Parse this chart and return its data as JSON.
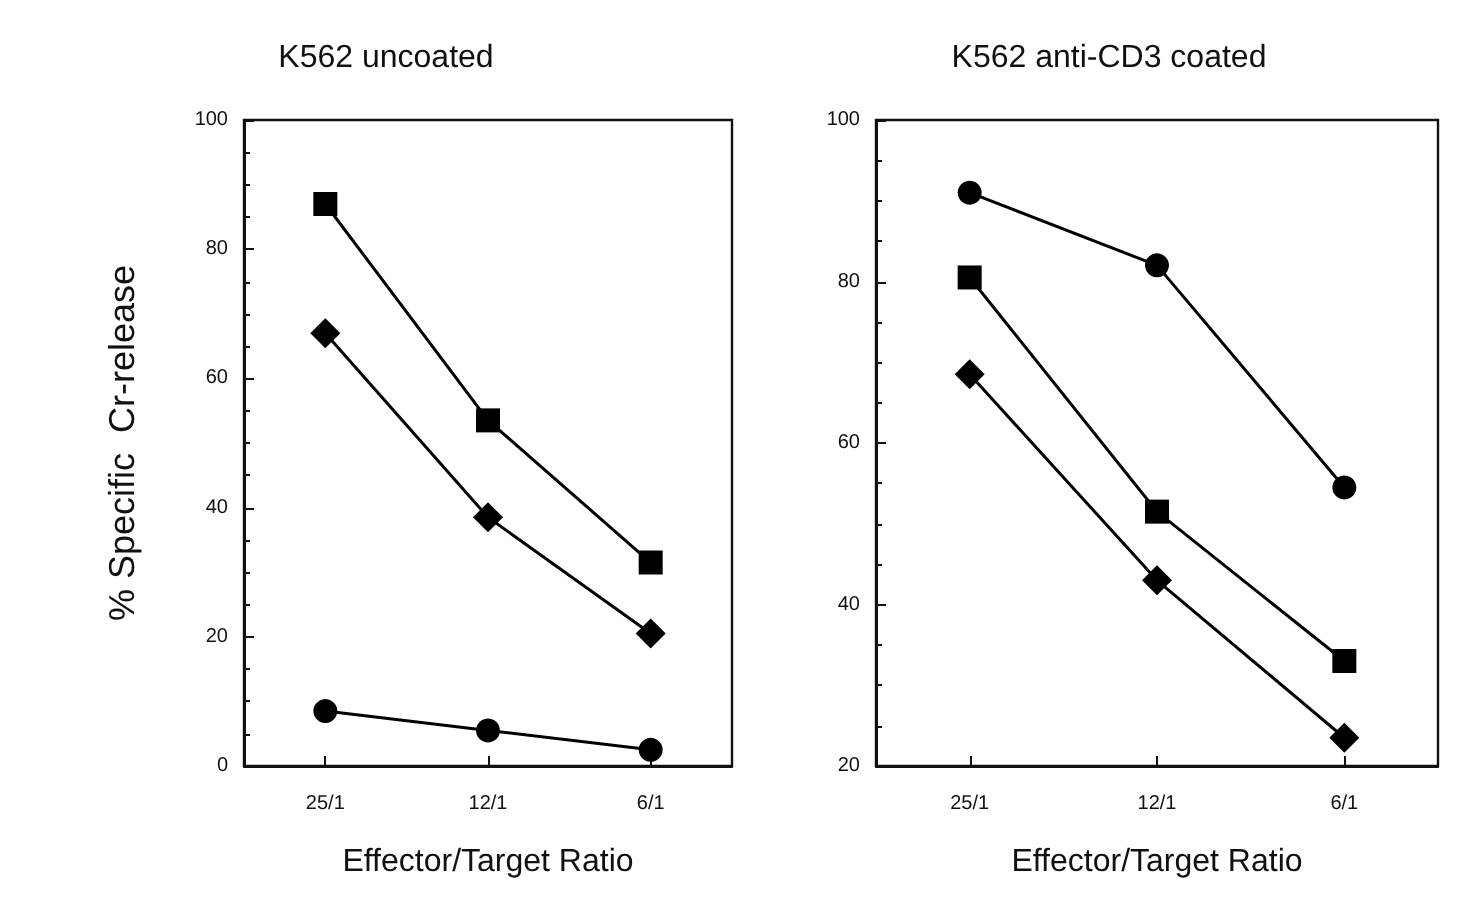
{
  "chart_data": [
    {
      "type": "line",
      "title": "K562 uncoated",
      "xlabel": "Effector/Target Ratio",
      "ylabel": "% Specific  Cr-release",
      "categories": [
        "25/1",
        "12/1",
        "6/1"
      ],
      "ylim": [
        0,
        100
      ],
      "yticks": [
        0,
        20,
        40,
        60,
        80,
        100
      ],
      "grid": false,
      "series": [
        {
          "color": "#000000",
          "marker": "square",
          "values": [
            87,
            53.5,
            31.5
          ]
        },
        {
          "color": "#000000",
          "marker": "diamond",
          "values": [
            67,
            38.5,
            20.5
          ]
        },
        {
          "color": "#000000",
          "marker": "circle",
          "values": [
            8.5,
            5.5,
            2.5
          ]
        }
      ]
    },
    {
      "type": "line",
      "title": "K562 anti-CD3 coated",
      "xlabel": "Effector/Target Ratio",
      "categories": [
        "25/1",
        "12/1",
        "6/1"
      ],
      "ylim": [
        20,
        100
      ],
      "yticks": [
        20,
        40,
        60,
        80,
        100
      ],
      "grid": false,
      "series": [
        {
          "color": "#000000",
          "marker": "circle",
          "values": [
            91,
            82,
            54.5
          ]
        },
        {
          "color": "#000000",
          "marker": "square",
          "values": [
            80.5,
            51.5,
            33
          ]
        },
        {
          "color": "#000000",
          "marker": "diamond",
          "values": [
            68.5,
            43,
            23.5
          ]
        }
      ]
    }
  ]
}
